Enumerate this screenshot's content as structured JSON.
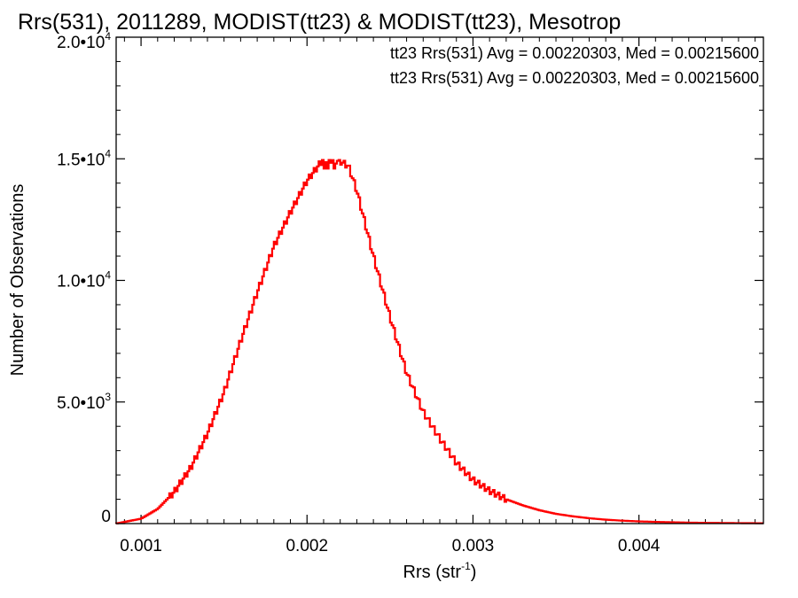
{
  "chart_data": {
    "type": "histogram-step",
    "title": "Rrs(531), 2011289, MODIST(tt23) & MODIST(tt23), Mesotrop",
    "xlabel": {
      "text": "Rrs (str",
      "sup": "-1",
      "close": ")"
    },
    "ylabel": "Number of Observations",
    "xlim": [
      0.00085,
      0.00475
    ],
    "ylim": [
      0,
      20000
    ],
    "x_ticks": [
      {
        "value": 0.001,
        "label": "0.001"
      },
      {
        "value": 0.002,
        "label": "0.002"
      },
      {
        "value": 0.003,
        "label": "0.003"
      },
      {
        "value": 0.004,
        "label": "0.004"
      }
    ],
    "y_ticks": [
      {
        "value": 0,
        "mant": "0",
        "exp": ""
      },
      {
        "value": 5000,
        "mant": "5.0•10",
        "exp": "3"
      },
      {
        "value": 10000,
        "mant": "1.0•10",
        "exp": "4"
      },
      {
        "value": 15000,
        "mant": "1.5•10",
        "exp": "4"
      },
      {
        "value": 20000,
        "mant": "2.0•10",
        "exp": "4"
      }
    ],
    "legend": [
      {
        "text": "tt23 Rrs(531) Avg = 0.00220303, Med = 0.00215600",
        "color": "#000000"
      },
      {
        "text": "tt23 Rrs(531) Avg = 0.00220303, Med = 0.00215600",
        "color": "#ff0000"
      }
    ],
    "legend_position": "top-right",
    "series": [
      {
        "color": "#ff0000",
        "points": [
          [
            0.00085,
            0
          ],
          [
            0.001,
            200
          ],
          [
            0.0011,
            600
          ],
          [
            0.0012,
            1300
          ],
          [
            0.0013,
            2300
          ],
          [
            0.0014,
            3700
          ],
          [
            0.0015,
            5400
          ],
          [
            0.0016,
            7500
          ],
          [
            0.0017,
            9500
          ],
          [
            0.0018,
            11400
          ],
          [
            0.0019,
            12800
          ],
          [
            0.002,
            14100
          ],
          [
            0.0021,
            15000
          ],
          [
            0.0022,
            14900
          ],
          [
            0.00225,
            14700
          ],
          [
            0.0023,
            13700
          ],
          [
            0.0024,
            11000
          ],
          [
            0.0025,
            8500
          ],
          [
            0.0026,
            6200
          ],
          [
            0.0027,
            4600
          ],
          [
            0.0028,
            3500
          ],
          [
            0.0029,
            2500
          ],
          [
            0.003,
            1800
          ],
          [
            0.0031,
            1350
          ],
          [
            0.0032,
            1000
          ],
          [
            0.0033,
            750
          ],
          [
            0.0034,
            550
          ],
          [
            0.0035,
            400
          ],
          [
            0.0036,
            300
          ],
          [
            0.0037,
            220
          ],
          [
            0.0038,
            160
          ],
          [
            0.0039,
            120
          ],
          [
            0.004,
            90
          ],
          [
            0.0041,
            70
          ],
          [
            0.0042,
            55
          ],
          [
            0.0043,
            40
          ],
          [
            0.0044,
            30
          ],
          [
            0.0045,
            25
          ],
          [
            0.0046,
            20
          ],
          [
            0.00475,
            15
          ]
        ]
      }
    ]
  }
}
